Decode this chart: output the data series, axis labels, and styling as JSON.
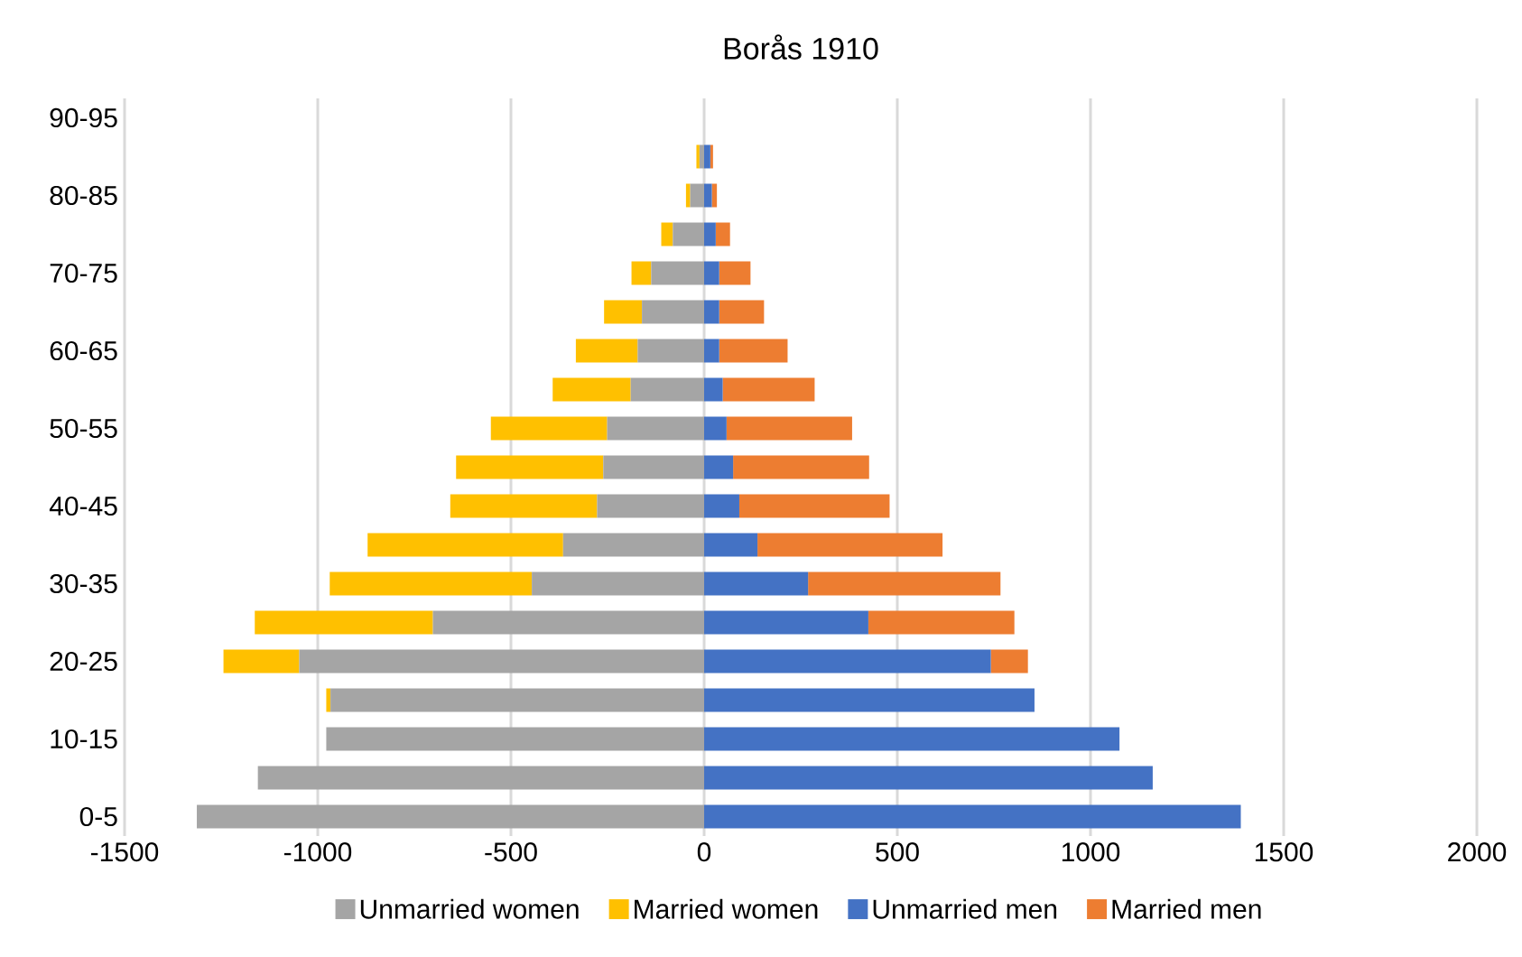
{
  "chart_data": {
    "type": "bar",
    "title": "Borås 1910",
    "orientation": "horizontal",
    "stacked": true,
    "categories": [
      "90-95",
      null,
      "80-85",
      null,
      "70-75",
      null,
      "60-65",
      null,
      "50-55",
      null,
      "40-45",
      null,
      "30-35",
      null,
      "20-25",
      null,
      "10-15",
      null,
      "0-5"
    ],
    "series": [
      {
        "name": "Unmarried women",
        "color": "#a5a5a5",
        "values": [
          null,
          -12,
          -36,
          -81,
          -137,
          -161,
          -172,
          -190,
          -251,
          -261,
          -277,
          -365,
          -446,
          -702,
          -1048,
          -967,
          -978,
          -1155,
          -1313
        ]
      },
      {
        "name": "Married women",
        "color": "#ffc000",
        "values": [
          null,
          -8,
          -11,
          -30,
          -51,
          -98,
          -160,
          -202,
          -301,
          -381,
          -380,
          -506,
          -523,
          -461,
          -196,
          -11,
          null,
          null,
          null
        ]
      },
      {
        "name": "Unmarried men",
        "color": "#4472c4",
        "values": [
          null,
          16,
          20,
          30,
          39,
          39,
          39,
          48,
          58,
          75,
          91,
          138,
          269,
          425,
          742,
          855,
          1075,
          1161,
          1389
        ]
      },
      {
        "name": "Married men",
        "color": "#ed7d31",
        "values": [
          null,
          7,
          13,
          37,
          81,
          116,
          177,
          238,
          325,
          352,
          389,
          479,
          498,
          378,
          96,
          null,
          null,
          null,
          null
        ]
      }
    ],
    "xlim": [
      -1500,
      2000
    ],
    "xticks": [
      -1500,
      -1000,
      -500,
      0,
      500,
      1000,
      1500,
      2000
    ],
    "grid": "x",
    "legend": "bottom"
  }
}
